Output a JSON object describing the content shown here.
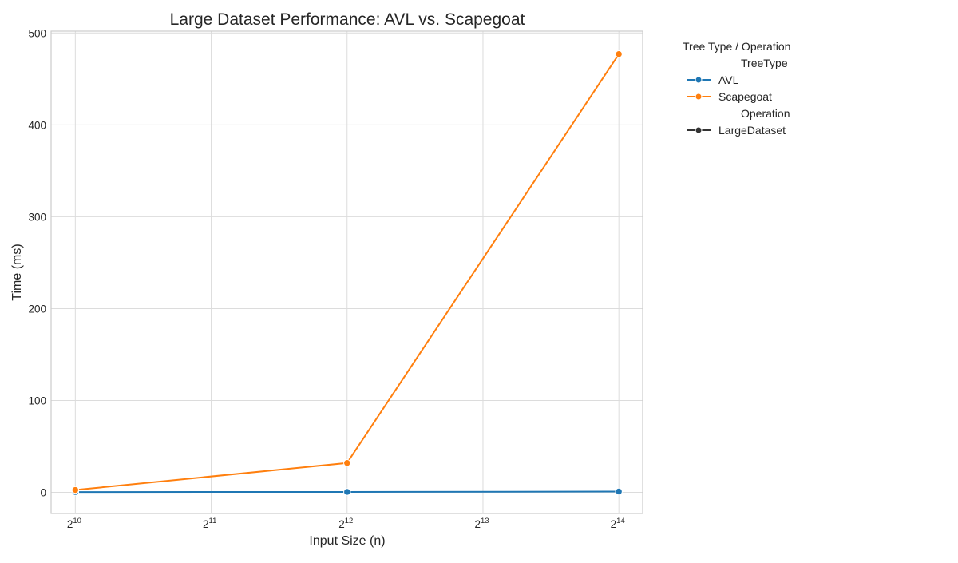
{
  "chart_data": {
    "type": "line",
    "title": "Large Dataset Performance: AVL vs. Scapegoat",
    "xlabel": "Input Size (n)",
    "ylabel": "Time (ms)",
    "x_scale": "log2",
    "x": [
      1024,
      4096,
      16384
    ],
    "xlim": [
      905,
      18500
    ],
    "ylim": [
      -23,
      502
    ],
    "x_ticks": [
      {
        "value": 1024,
        "base": "2",
        "exp": "10"
      },
      {
        "value": 2048,
        "base": "2",
        "exp": "11"
      },
      {
        "value": 4096,
        "base": "2",
        "exp": "12"
      },
      {
        "value": 8192,
        "base": "2",
        "exp": "13"
      },
      {
        "value": 16384,
        "base": "2",
        "exp": "14"
      }
    ],
    "y_ticks": [
      0,
      100,
      200,
      300,
      400,
      500
    ],
    "grid": true,
    "series": [
      {
        "name": "AVL",
        "color": "#1f77b4",
        "values": [
          0.4,
          0.5,
          0.9
        ]
      },
      {
        "name": "Scapegoat",
        "color": "#ff7f0e",
        "values": [
          2.6,
          32.0,
          477.0
        ]
      }
    ],
    "legend": {
      "placement": "outside-right",
      "title": "Tree Type / Operation",
      "sections": [
        {
          "header": "TreeType",
          "entries": [
            {
              "label": "AVL",
              "color": "#1f77b4"
            },
            {
              "label": "Scapegoat",
              "color": "#ff7f0e"
            }
          ]
        },
        {
          "header": "Operation",
          "entries": [
            {
              "label": "LargeDataset",
              "color": "#333333"
            }
          ]
        }
      ]
    }
  }
}
